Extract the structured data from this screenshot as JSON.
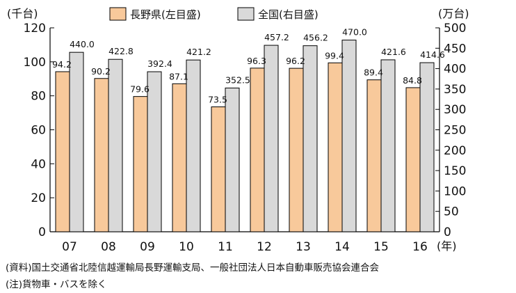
{
  "chart_data": {
    "type": "bar",
    "categories": [
      "07",
      "08",
      "09",
      "10",
      "11",
      "12",
      "13",
      "14",
      "15",
      "16"
    ],
    "series": [
      {
        "name": "長野県(左目盛)",
        "axis": "left",
        "color": "#f8c99b",
        "values": [
          94.2,
          90.2,
          79.6,
          87.1,
          73.5,
          96.3,
          96.2,
          99.4,
          89.4,
          84.8
        ],
        "labels": [
          "94.2",
          "90.2",
          "79.6",
          "87.1",
          "73.5",
          "96.3",
          "96.2",
          "99.4",
          "89.4",
          "84.8"
        ]
      },
      {
        "name": "全国(右目盛)",
        "axis": "right",
        "color": "#d9d9d9",
        "values": [
          440.0,
          422.8,
          392.4,
          421.2,
          352.5,
          457.2,
          456.2,
          470.0,
          421.6,
          414.6
        ],
        "labels": [
          "440.0",
          "422.8",
          "392.4",
          "421.2",
          "352.5",
          "457.2",
          "456.2",
          "470.0",
          "421.6",
          "414.6"
        ]
      }
    ],
    "left_axis": {
      "unit_label": "(千台)",
      "ylim": [
        0,
        120
      ],
      "ticks": [
        0,
        20,
        40,
        60,
        80,
        100,
        120
      ]
    },
    "right_axis": {
      "unit_label": "(万台)",
      "ylim": [
        0,
        500
      ],
      "ticks": [
        0,
        50,
        100,
        150,
        200,
        250,
        300,
        350,
        400,
        450,
        500
      ]
    },
    "x_unit_label": "(年)",
    "legend_position": "top"
  },
  "notes": {
    "source": "(資料)国土交通省北陸信越運輸局長野運輸支局、一般社団法人日本自動車販売協会連合会",
    "note": "(注)貨物車・バスを除く"
  }
}
